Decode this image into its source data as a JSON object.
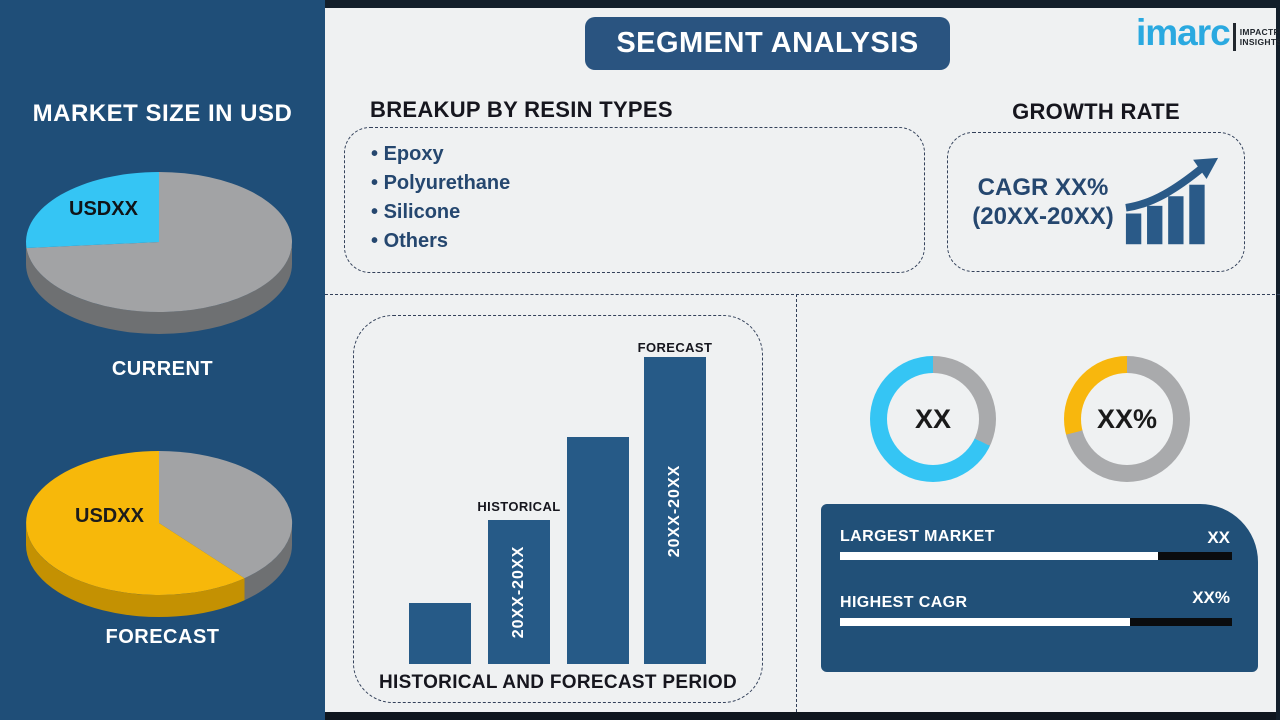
{
  "page": {
    "title": "SEGMENT ANALYSIS"
  },
  "logo": {
    "brand": "imarc",
    "tagline_line1": "IMPACTFUL",
    "tagline_line2": "INSIGHTS"
  },
  "sidebar": {
    "heading": "MARKET SIZE IN USD"
  },
  "breakup": {
    "heading": "BREAKUP BY RESIN TYPES",
    "items": [
      "Epoxy",
      "Polyurethane",
      "Silicone",
      "Others"
    ]
  },
  "growth": {
    "heading": "GROWTH RATE",
    "cagr_line1": "CAGR XX%",
    "cagr_line2": "(20XX-20XX)"
  },
  "bottom_panel": {
    "rows": [
      {
        "label": "LARGEST MARKET",
        "value": "XX",
        "progress_percent": 81
      },
      {
        "label": "HIGHEST CAGR",
        "value": "XX%",
        "progress_percent": 74
      }
    ]
  },
  "chart_data": [
    {
      "id": "current-pie",
      "type": "pie",
      "style": "3d",
      "title": "CURRENT",
      "slices": [
        {
          "label": "USDXX",
          "percent": 25,
          "color": "#35c5f4"
        },
        {
          "label": "",
          "percent": 75,
          "color": "#a2a3a5"
        }
      ]
    },
    {
      "id": "forecast-pie",
      "type": "pie",
      "style": "3d",
      "title": "FORECAST",
      "slices": [
        {
          "label": "USDXX",
          "percent": 61,
          "color": "#f7b80a"
        },
        {
          "label": "",
          "percent": 39,
          "color": "#a2a3a5"
        }
      ]
    },
    {
      "id": "period-bars",
      "type": "bar",
      "caption": "HISTORICAL AND FORECAST PERIOD",
      "categories": [
        "",
        "HISTORICAL",
        "",
        "FORECAST"
      ],
      "bar_labels": [
        "",
        "20XX-20XX",
        "",
        "20XX-20XX"
      ],
      "values": [
        20,
        47,
        74,
        100
      ],
      "value_note": "relative bar heights, percent of tallest bar",
      "bar_color": "#265a87",
      "grid": false,
      "legend": "none"
    },
    {
      "id": "donut-left",
      "type": "donut",
      "center_label": "XX",
      "segments": [
        {
          "color": "#a9aaac",
          "percent": 32
        },
        {
          "color": "#35c5f4",
          "percent": 68
        }
      ]
    },
    {
      "id": "donut-right",
      "type": "donut",
      "center_label": "XX%",
      "segments": [
        {
          "color": "#a9aaac",
          "percent": 71
        },
        {
          "color": "#f8b70d",
          "percent": 29
        }
      ]
    }
  ],
  "colors": {
    "sidebar_navy": "#1f4e78",
    "panel_navy": "#215078",
    "title_navy": "#2a5480",
    "accent_cyan": "#35c5f4",
    "accent_yellow": "#f7b80a",
    "bar_blue": "#265a87",
    "gray": "#a2a3a5",
    "background": "#eff1f2",
    "logo_blue": "#2aa9e0",
    "dark_text": "#16161e",
    "navy_text": "#25476f"
  }
}
